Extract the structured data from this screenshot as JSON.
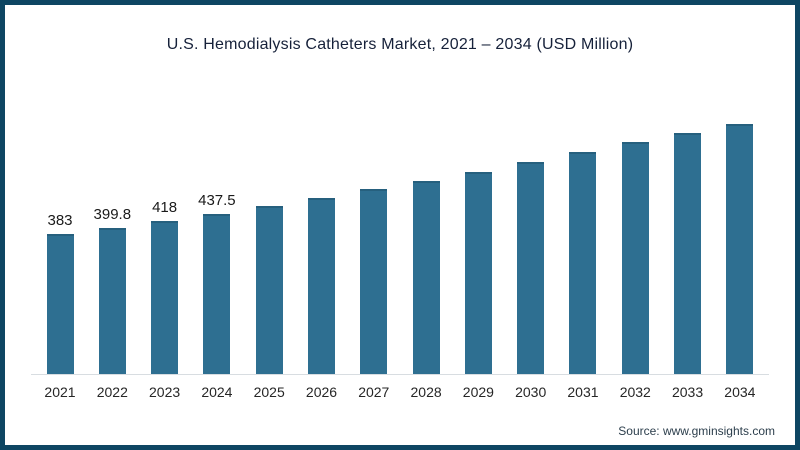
{
  "title": "U.S. Hemodialysis Catheters Market, 2021 – 2034 (USD Million)",
  "source": "Source: www.gminsights.com",
  "frame": {
    "border_color": "#0e4663"
  },
  "chart_data": {
    "type": "bar",
    "title": "U.S. Hemodialysis Catheters Market, 2021 – 2034 (USD Million)",
    "categories": [
      "2021",
      "2022",
      "2023",
      "2024",
      "2025",
      "2026",
      "2027",
      "2028",
      "2029",
      "2030",
      "2031",
      "2032",
      "2033",
      "2034"
    ],
    "values": [
      383,
      399.8,
      418,
      437.5,
      458,
      481,
      505,
      528,
      552,
      578,
      606,
      634,
      658,
      682
    ],
    "value_labels": [
      "383",
      "399.8",
      "418",
      "437.5",
      "",
      "",
      "",
      "",
      "",
      "",
      "",
      "",
      "",
      ""
    ],
    "bar_color": "#2e6f91",
    "bar_edge_color": "#26607e",
    "xlabel": "",
    "ylabel": "",
    "ylim": [
      0,
      770
    ],
    "grid": false,
    "legend": false,
    "axis_line_color": "#d8dde1",
    "note_visible_labels": "only first four bars carry data labels"
  }
}
